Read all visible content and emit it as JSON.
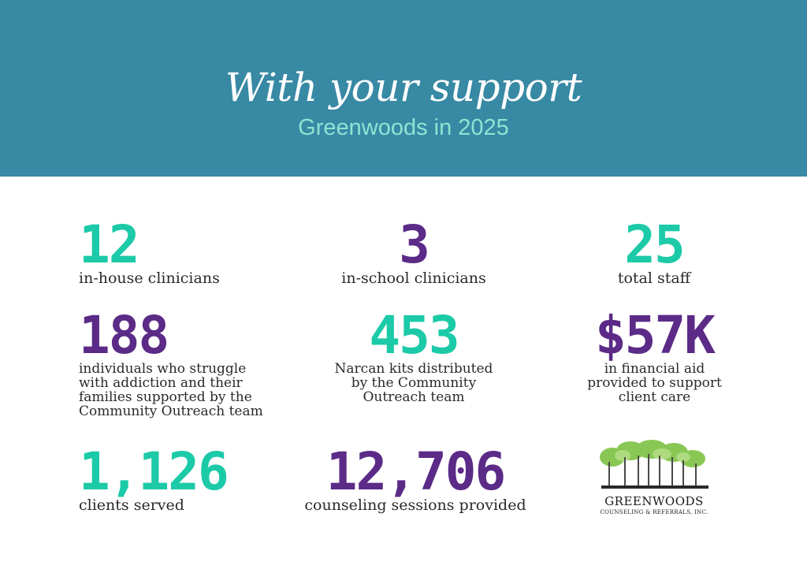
{
  "header": {
    "title": "With your support",
    "subtitle": "Greenwoods in 2025"
  },
  "stats": [
    {
      "value": "12",
      "label_lines": [
        "in-house clinicians"
      ]
    },
    {
      "value": "3",
      "label_lines": [
        "in-school clinicians"
      ]
    },
    {
      "value": "25",
      "label_lines": [
        "total staff"
      ]
    },
    {
      "value": "188",
      "label_lines": [
        "individuals who struggle",
        "with addiction and their",
        "families supported by the",
        "Community Outreach team"
      ]
    },
    {
      "value": "453",
      "label_lines": [
        "Narcan kits distributed",
        "by the Community",
        "Outreach team"
      ]
    },
    {
      "value": "$57K",
      "label_lines": [
        "in financial aid",
        "provided to support",
        "client care"
      ]
    },
    {
      "value": "1,126",
      "label_lines": [
        "clients served"
      ]
    },
    {
      "value": "12,706",
      "label_lines": [
        "counseling sessions provided"
      ]
    }
  ],
  "logo": {
    "name": "GREENWOODS",
    "tagline": "COUNSELING & REFERRALS, INC."
  },
  "colors": {
    "banner": "#3789a4",
    "teal": "#1ccaa8",
    "purple": "#5b2b87",
    "subtitle": "#8fe3d2"
  }
}
